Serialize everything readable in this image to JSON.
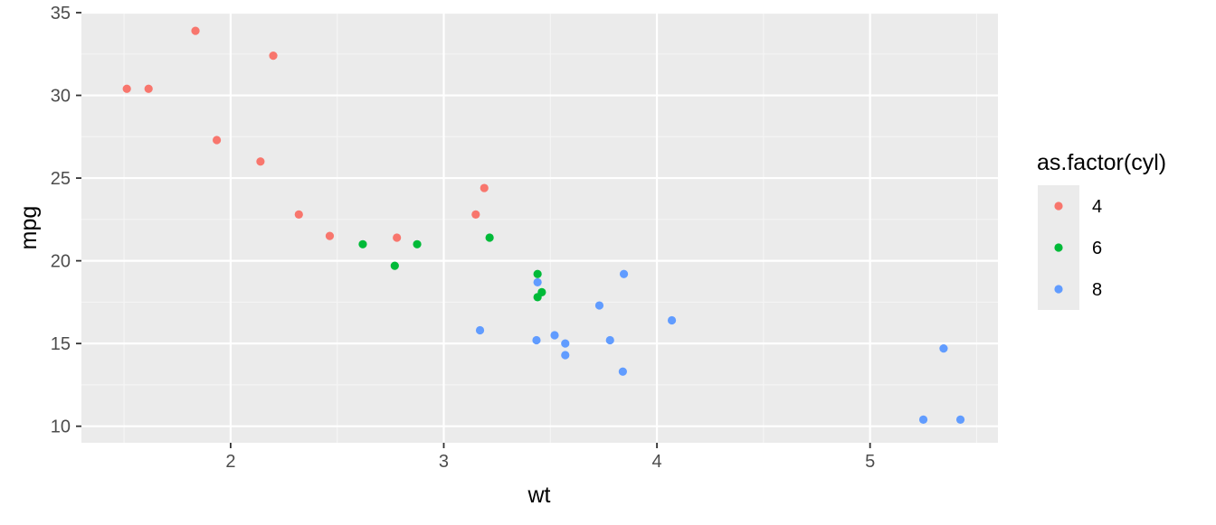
{
  "chart_data": {
    "type": "scatter",
    "title": "",
    "xlabel": "wt",
    "ylabel": "mpg",
    "xlim": [
      1.3,
      5.6
    ],
    "ylim": [
      9.0,
      35.0
    ],
    "x_ticks": [
      2,
      3,
      4,
      5
    ],
    "y_ticks": [
      10,
      15,
      20,
      25,
      30,
      35
    ],
    "grid": true,
    "legend": {
      "title": "as.factor(cyl)",
      "position": "right"
    },
    "series": [
      {
        "name": "4",
        "color": "#F8766D",
        "points": [
          {
            "x": 2.32,
            "y": 22.8
          },
          {
            "x": 3.19,
            "y": 24.4
          },
          {
            "x": 3.15,
            "y": 22.8
          },
          {
            "x": 2.2,
            "y": 32.4
          },
          {
            "x": 1.615,
            "y": 30.4
          },
          {
            "x": 1.835,
            "y": 33.9
          },
          {
            "x": 2.465,
            "y": 21.5
          },
          {
            "x": 1.935,
            "y": 27.3
          },
          {
            "x": 2.14,
            "y": 26.0
          },
          {
            "x": 1.513,
            "y": 30.4
          },
          {
            "x": 2.78,
            "y": 21.4
          }
        ]
      },
      {
        "name": "6",
        "color": "#00BA38",
        "points": [
          {
            "x": 2.62,
            "y": 21.0
          },
          {
            "x": 2.875,
            "y": 21.0
          },
          {
            "x": 3.215,
            "y": 21.4
          },
          {
            "x": 3.46,
            "y": 18.1
          },
          {
            "x": 3.44,
            "y": 19.2
          },
          {
            "x": 3.44,
            "y": 17.8
          },
          {
            "x": 2.77,
            "y": 19.7
          }
        ]
      },
      {
        "name": "8",
        "color": "#619CFF",
        "points": [
          {
            "x": 3.44,
            "y": 18.7
          },
          {
            "x": 3.57,
            "y": 14.3
          },
          {
            "x": 4.07,
            "y": 16.4
          },
          {
            "x": 3.73,
            "y": 17.3
          },
          {
            "x": 3.78,
            "y": 15.2
          },
          {
            "x": 5.25,
            "y": 10.4
          },
          {
            "x": 5.424,
            "y": 10.4
          },
          {
            "x": 5.345,
            "y": 14.7
          },
          {
            "x": 3.52,
            "y": 15.5
          },
          {
            "x": 3.435,
            "y": 15.2
          },
          {
            "x": 3.84,
            "y": 13.3
          },
          {
            "x": 3.845,
            "y": 19.2
          },
          {
            "x": 3.17,
            "y": 15.8
          },
          {
            "x": 3.57,
            "y": 15.0
          }
        ]
      }
    ]
  },
  "colors": {
    "panel_background": "#EBEBEB",
    "grid_major": "#FFFFFF",
    "grid_minor": "#F5F5F5",
    "tick_mark": "#333333",
    "legend_key_background": "#EBEBEB"
  }
}
